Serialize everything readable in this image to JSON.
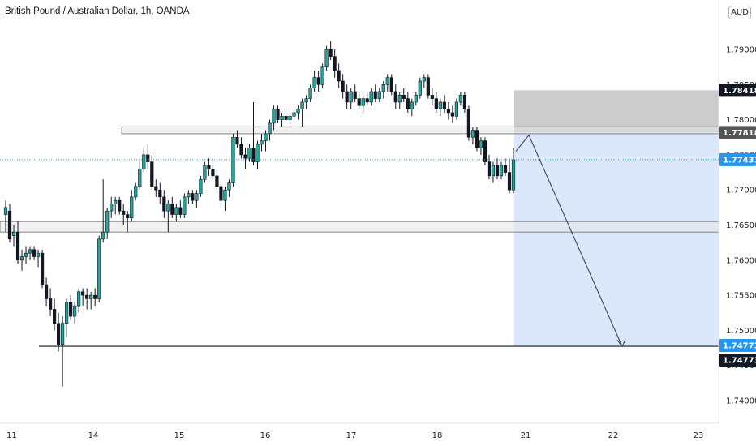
{
  "header": {
    "title": "British Pound / Australian Dollar, 1h, OANDA",
    "currency_badge": "AUD"
  },
  "colors": {
    "up": "#26a69a",
    "down": "#131722",
    "stop_zone": "#c9c9c9",
    "target_zone": "#dbe7fb",
    "dotted_line": "#2196f3",
    "tag_dark": "#131722",
    "tag_grey": "#555555",
    "tag_blue": "#2196f3"
  },
  "chart_data": {
    "type": "candlestick",
    "title": "British Pound / Australian Dollar, 1h, OANDA",
    "ylim": [
      1.738,
      1.796
    ],
    "y_ticks": [
      "1.79000",
      "1.78500",
      "1.78000",
      "1.77500",
      "1.77000",
      "1.76500",
      "1.76000",
      "1.75500",
      "1.75000",
      "1.74500",
      "1.74000"
    ],
    "x_ticks": [
      "11",
      "14",
      "15",
      "16",
      "17",
      "18",
      "21",
      "22",
      "23"
    ],
    "price_tags": [
      {
        "label": "1.78418",
        "style": "dark"
      },
      {
        "label": "1.77818",
        "style": "grey"
      },
      {
        "label": "1.77431",
        "style": "blue"
      },
      {
        "label": "1.74773",
        "style": "blue"
      },
      {
        "label": "1.74773",
        "style": "dark"
      }
    ],
    "zones": [
      {
        "name": "resistance",
        "from": 1.778,
        "to": 1.779
      },
      {
        "name": "support",
        "from": 1.764,
        "to": 1.7655
      }
    ],
    "position": {
      "type": "short",
      "entry": 1.77818,
      "stop": 1.78418,
      "target": 1.74773
    },
    "horizontal_line": 1.74773,
    "last_price": 1.77431,
    "candles": [
      [
        1.7665,
        1.7685,
        1.764,
        1.7675
      ],
      [
        1.767,
        1.768,
        1.7625,
        1.763
      ],
      [
        1.7635,
        1.765,
        1.762,
        1.764
      ],
      [
        1.764,
        1.7655,
        1.7595,
        1.76
      ],
      [
        1.76,
        1.7615,
        1.7585,
        1.7605
      ],
      [
        1.7605,
        1.762,
        1.7595,
        1.761
      ],
      [
        1.761,
        1.762,
        1.76,
        1.7615
      ],
      [
        1.7615,
        1.762,
        1.76,
        1.7605
      ],
      [
        1.7605,
        1.7615,
        1.759,
        1.761
      ],
      [
        1.761,
        1.7615,
        1.756,
        1.7565
      ],
      [
        1.7565,
        1.7575,
        1.7535,
        1.7545
      ],
      [
        1.7545,
        1.756,
        1.752,
        1.753
      ],
      [
        1.753,
        1.7545,
        1.75,
        1.751
      ],
      [
        1.751,
        1.7525,
        1.747,
        1.748
      ],
      [
        1.748,
        1.752,
        1.742,
        1.751
      ],
      [
        1.751,
        1.7545,
        1.749,
        1.754
      ],
      [
        1.754,
        1.755,
        1.7515,
        1.752
      ],
      [
        1.752,
        1.754,
        1.751,
        1.7535
      ],
      [
        1.7535,
        1.756,
        1.7525,
        1.7555
      ],
      [
        1.7555,
        1.756,
        1.7535,
        1.755
      ],
      [
        1.755,
        1.756,
        1.753,
        1.7545
      ],
      [
        1.7545,
        1.7555,
        1.753,
        1.755
      ],
      [
        1.755,
        1.756,
        1.7535,
        1.7545
      ],
      [
        1.7545,
        1.7635,
        1.754,
        1.763
      ],
      [
        1.763,
        1.7715,
        1.7625,
        1.764
      ],
      [
        1.764,
        1.7675,
        1.763,
        1.767
      ],
      [
        1.767,
        1.769,
        1.766,
        1.768
      ],
      [
        1.768,
        1.769,
        1.7665,
        1.7685
      ],
      [
        1.7685,
        1.769,
        1.7665,
        1.767
      ],
      [
        1.767,
        1.768,
        1.765,
        1.7665
      ],
      [
        1.7665,
        1.767,
        1.764,
        1.766
      ],
      [
        1.766,
        1.77,
        1.7655,
        1.769
      ],
      [
        1.769,
        1.771,
        1.7685,
        1.7705
      ],
      [
        1.7705,
        1.774,
        1.77,
        1.773
      ],
      [
        1.773,
        1.776,
        1.7725,
        1.775
      ],
      [
        1.775,
        1.7765,
        1.773,
        1.774
      ],
      [
        1.774,
        1.775,
        1.77,
        1.7705
      ],
      [
        1.7705,
        1.7715,
        1.769,
        1.77
      ],
      [
        1.77,
        1.771,
        1.768,
        1.769
      ],
      [
        1.769,
        1.77,
        1.766,
        1.767
      ],
      [
        1.767,
        1.7685,
        1.764,
        1.768
      ],
      [
        1.768,
        1.769,
        1.766,
        1.7665
      ],
      [
        1.7665,
        1.768,
        1.7655,
        1.7675
      ],
      [
        1.7675,
        1.7685,
        1.766,
        1.7665
      ],
      [
        1.7665,
        1.7695,
        1.766,
        1.769
      ],
      [
        1.769,
        1.77,
        1.768,
        1.7695
      ],
      [
        1.7695,
        1.77,
        1.768,
        1.7685
      ],
      [
        1.7685,
        1.77,
        1.7675,
        1.7695
      ],
      [
        1.7695,
        1.772,
        1.769,
        1.7715
      ],
      [
        1.7715,
        1.774,
        1.771,
        1.7735
      ],
      [
        1.7735,
        1.7745,
        1.772,
        1.773
      ],
      [
        1.773,
        1.774,
        1.7715,
        1.772
      ],
      [
        1.772,
        1.773,
        1.77,
        1.7705
      ],
      [
        1.7705,
        1.771,
        1.7675,
        1.7685
      ],
      [
        1.7685,
        1.7705,
        1.767,
        1.77
      ],
      [
        1.77,
        1.7715,
        1.769,
        1.771
      ],
      [
        1.771,
        1.778,
        1.7705,
        1.7775
      ],
      [
        1.7775,
        1.7785,
        1.776,
        1.7765
      ],
      [
        1.7765,
        1.7775,
        1.7745,
        1.775
      ],
      [
        1.775,
        1.776,
        1.773,
        1.7745
      ],
      [
        1.7745,
        1.7765,
        1.774,
        1.776
      ],
      [
        1.776,
        1.7825,
        1.7735,
        1.774
      ],
      [
        1.774,
        1.777,
        1.773,
        1.7765
      ],
      [
        1.7765,
        1.778,
        1.7755,
        1.777
      ],
      [
        1.777,
        1.7785,
        1.7755,
        1.778
      ],
      [
        1.778,
        1.78,
        1.777,
        1.7795
      ],
      [
        1.7795,
        1.782,
        1.7785,
        1.7815
      ],
      [
        1.7815,
        1.782,
        1.7795,
        1.78
      ],
      [
        1.78,
        1.781,
        1.779,
        1.7805
      ],
      [
        1.7805,
        1.7815,
        1.7795,
        1.78
      ],
      [
        1.78,
        1.781,
        1.779,
        1.7805
      ],
      [
        1.7805,
        1.7815,
        1.7795,
        1.781
      ],
      [
        1.781,
        1.782,
        1.78,
        1.7815
      ],
      [
        1.7815,
        1.783,
        1.779,
        1.7825
      ],
      [
        1.7825,
        1.7835,
        1.7815,
        1.783
      ],
      [
        1.783,
        1.785,
        1.7825,
        1.7845
      ],
      [
        1.7845,
        1.787,
        1.784,
        1.786
      ],
      [
        1.786,
        1.787,
        1.784,
        1.785
      ],
      [
        1.785,
        1.788,
        1.7845,
        1.7875
      ],
      [
        1.7875,
        1.7905,
        1.787,
        1.79
      ],
      [
        1.79,
        1.7912,
        1.7885,
        1.789
      ],
      [
        1.789,
        1.79,
        1.786,
        1.787
      ],
      [
        1.787,
        1.788,
        1.7845,
        1.7855
      ],
      [
        1.7855,
        1.7865,
        1.783,
        1.784
      ],
      [
        1.784,
        1.785,
        1.7815,
        1.7825
      ],
      [
        1.7825,
        1.7845,
        1.7815,
        1.784
      ],
      [
        1.784,
        1.785,
        1.7825,
        1.783
      ],
      [
        1.783,
        1.784,
        1.7815,
        1.782
      ],
      [
        1.782,
        1.7835,
        1.781,
        1.783
      ],
      [
        1.783,
        1.784,
        1.782,
        1.7825
      ],
      [
        1.7825,
        1.7845,
        1.782,
        1.784
      ],
      [
        1.784,
        1.785,
        1.7825,
        1.783
      ],
      [
        1.783,
        1.7845,
        1.7825,
        1.784
      ],
      [
        1.784,
        1.7855,
        1.783,
        1.785
      ],
      [
        1.785,
        1.7865,
        1.784,
        1.786
      ],
      [
        1.786,
        1.7865,
        1.7835,
        1.784
      ],
      [
        1.784,
        1.785,
        1.7815,
        1.7825
      ],
      [
        1.7825,
        1.784,
        1.7815,
        1.7835
      ],
      [
        1.7835,
        1.7845,
        1.7825,
        1.783
      ],
      [
        1.783,
        1.784,
        1.781,
        1.7815
      ],
      [
        1.7815,
        1.783,
        1.7805,
        1.7825
      ],
      [
        1.7825,
        1.784,
        1.782,
        1.7835
      ],
      [
        1.7835,
        1.786,
        1.783,
        1.7855
      ],
      [
        1.7855,
        1.7865,
        1.7845,
        1.786
      ],
      [
        1.786,
        1.7865,
        1.783,
        1.7835
      ],
      [
        1.7835,
        1.7845,
        1.782,
        1.783
      ],
      [
        1.783,
        1.784,
        1.781,
        1.7815
      ],
      [
        1.7815,
        1.783,
        1.7805,
        1.7825
      ],
      [
        1.7825,
        1.7835,
        1.781,
        1.7815
      ],
      [
        1.7815,
        1.7825,
        1.78,
        1.781
      ],
      [
        1.781,
        1.782,
        1.7795,
        1.7805
      ],
      [
        1.7805,
        1.783,
        1.78,
        1.7825
      ],
      [
        1.7825,
        1.784,
        1.782,
        1.7835
      ],
      [
        1.7835,
        1.784,
        1.781,
        1.7815
      ],
      [
        1.7815,
        1.782,
        1.777,
        1.7775
      ],
      [
        1.7775,
        1.779,
        1.7765,
        1.7785
      ],
      [
        1.7785,
        1.779,
        1.7755,
        1.776
      ],
      [
        1.776,
        1.7775,
        1.775,
        1.777
      ],
      [
        1.777,
        1.7775,
        1.7735,
        1.774
      ],
      [
        1.774,
        1.775,
        1.7715,
        1.772
      ],
      [
        1.772,
        1.774,
        1.771,
        1.7735
      ],
      [
        1.7735,
        1.7745,
        1.7715,
        1.772
      ],
      [
        1.772,
        1.774,
        1.7715,
        1.7735
      ],
      [
        1.7735,
        1.7745,
        1.772,
        1.7725
      ],
      [
        1.7725,
        1.7745,
        1.7695,
        1.77
      ],
      [
        1.77,
        1.776,
        1.7695,
        1.7743
      ]
    ]
  }
}
